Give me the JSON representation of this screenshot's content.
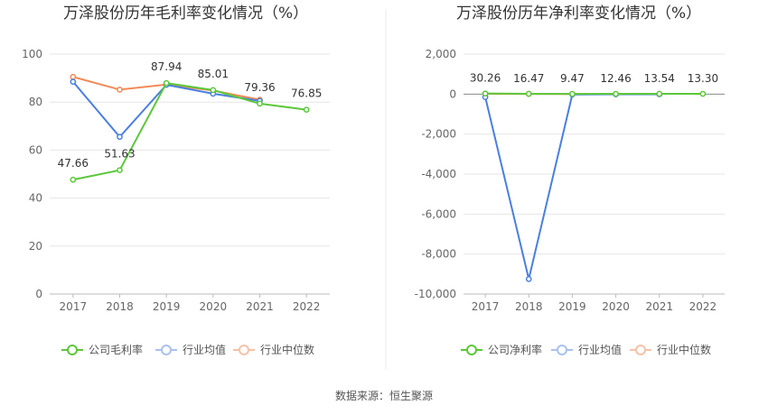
{
  "chart_data": [
    {
      "type": "line",
      "title": "万泽股份历年毛利率变化情况（%）",
      "categories": [
        "2017",
        "2018",
        "2019",
        "2020",
        "2021",
        "2022"
      ],
      "ylim": [
        0,
        100
      ],
      "yticks": [
        0,
        20,
        40,
        60,
        80,
        100
      ],
      "ytick_labels": [
        "0",
        "20",
        "40",
        "60",
        "80",
        "100"
      ],
      "grid": true,
      "legend_position": "bottom",
      "series": [
        {
          "name": "公司毛利率",
          "color": "#5cc73a",
          "values": [
            47.66,
            51.63,
            87.94,
            85.01,
            79.36,
            76.85
          ],
          "labels": [
            "47.66",
            "51.63",
            "87.94",
            "85.01",
            "79.36",
            "76.85"
          ]
        },
        {
          "name": "行业均值",
          "color": "#4a7fe0",
          "values": [
            88.5,
            65.5,
            87.2,
            83.5,
            80.5,
            null
          ]
        },
        {
          "name": "行业中位数",
          "color": "#f08a57",
          "values": [
            90.5,
            85.2,
            87.3,
            84.8,
            81.0,
            null
          ]
        }
      ]
    },
    {
      "type": "line",
      "title": "万泽股份历年净利率变化情况（%）",
      "categories": [
        "2017",
        "2018",
        "2019",
        "2020",
        "2021",
        "2022"
      ],
      "ylim": [
        -10000,
        2000
      ],
      "yticks": [
        -10000,
        -8000,
        -6000,
        -4000,
        -2000,
        0,
        2000
      ],
      "ytick_labels": [
        "-10,000",
        "-8,000",
        "-6,000",
        "-4,000",
        "-2,000",
        "0",
        "2,000"
      ],
      "grid": true,
      "legend_position": "bottom",
      "series": [
        {
          "name": "公司净利率",
          "color": "#5cc73a",
          "values": [
            30.26,
            16.47,
            9.47,
            12.46,
            13.54,
            13.3
          ],
          "labels": [
            "30.26",
            "16.47",
            "9.47",
            "12.46",
            "13.54",
            "13.30"
          ]
        },
        {
          "name": "行业均值",
          "color": "#4a7fe0",
          "values": [
            -150,
            -9250,
            -20,
            -10,
            -5,
            null
          ]
        },
        {
          "name": "行业中位数",
          "color": "#f08a57",
          "values": [
            15,
            8,
            6,
            5,
            6,
            null
          ]
        }
      ]
    }
  ],
  "footer": {
    "source": "数据来源：恒生聚源"
  }
}
